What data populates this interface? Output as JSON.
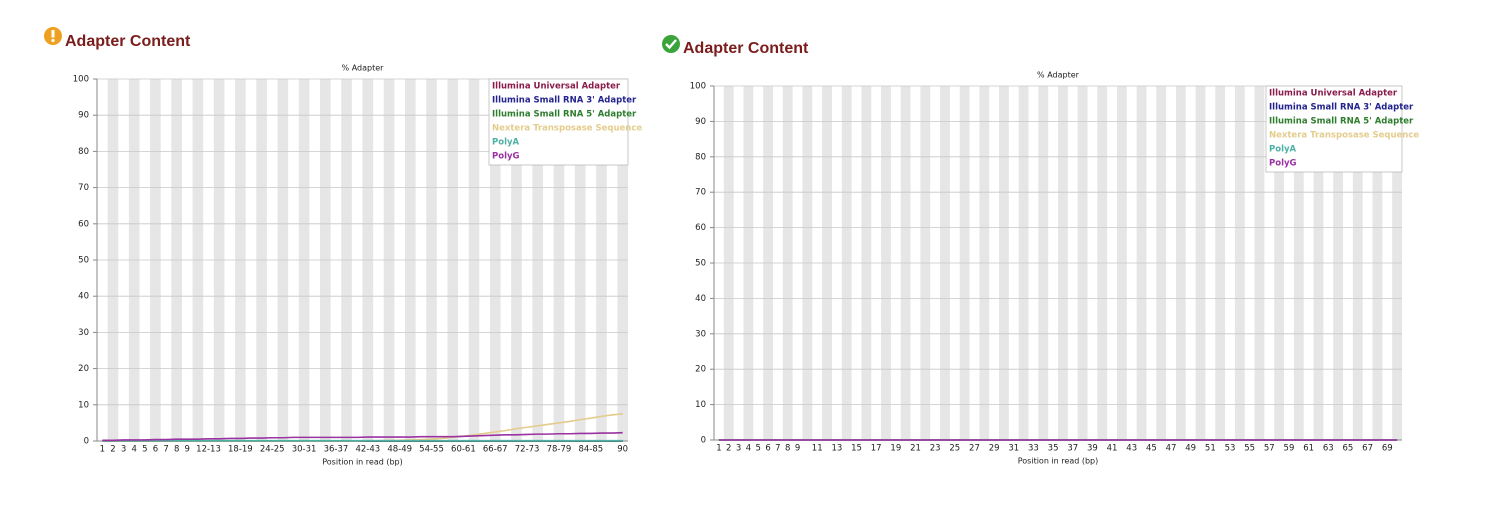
{
  "headings": [
    "Adapter Content",
    "Adapter Content"
  ],
  "chart_data": [
    {
      "type": "line",
      "title": "% Adapter",
      "x_label": "Position in read (bp)",
      "categories": [
        "1",
        "2",
        "3",
        "4",
        "5",
        "6",
        "7",
        "8",
        "9",
        null,
        "12-13",
        null,
        null,
        "18-19",
        null,
        null,
        "24-25",
        null,
        null,
        "30-31",
        null,
        null,
        "36-37",
        null,
        null,
        "42-43",
        null,
        null,
        "48-49",
        null,
        null,
        "54-55",
        null,
        null,
        "60-61",
        null,
        null,
        "66-67",
        null,
        null,
        "72-73",
        null,
        null,
        "78-79",
        null,
        null,
        "84-85",
        null,
        null,
        "90"
      ],
      "ylim": [
        0,
        100
      ],
      "yticks": [
        0,
        10,
        20,
        30,
        40,
        50,
        60,
        70,
        80,
        90,
        100
      ],
      "grid": true,
      "legend": "top-right",
      "series": [
        {
          "name": "Illumina Universal Adapter",
          "color": "#8a1c4c",
          "values": [
            0,
            0,
            0,
            0,
            0,
            0,
            0,
            0,
            0,
            0,
            0,
            0,
            0,
            0,
            0,
            0,
            0,
            0,
            0,
            0,
            0,
            0,
            0,
            0,
            0,
            0,
            0,
            0,
            0,
            0,
            0,
            0,
            0,
            0,
            0,
            0,
            0,
            0,
            0,
            0,
            0,
            0,
            0,
            0,
            0,
            0,
            0,
            0,
            0,
            0
          ]
        },
        {
          "name": "Illumina Small RNA 3' Adapter",
          "color": "#23238e",
          "values": [
            0,
            0,
            0,
            0,
            0,
            0,
            0,
            0,
            0,
            0,
            0,
            0,
            0,
            0,
            0,
            0,
            0,
            0,
            0,
            0,
            0,
            0,
            0,
            0,
            0,
            0,
            0,
            0,
            0,
            0,
            0,
            0,
            0,
            0,
            0,
            0,
            0,
            0,
            0,
            0,
            0,
            0,
            0,
            0,
            0,
            0,
            0,
            0,
            0,
            0
          ]
        },
        {
          "name": "Illumina Small RNA 5' Adapter",
          "color": "#2e7d2e",
          "values": [
            0,
            0,
            0,
            0,
            0,
            0,
            0,
            0,
            0,
            0,
            0,
            0,
            0,
            0,
            0,
            0,
            0,
            0,
            0,
            0,
            0,
            0,
            0,
            0,
            0,
            0,
            0,
            0,
            0,
            0,
            0,
            0,
            0,
            0,
            0,
            0,
            0,
            0,
            0,
            0,
            0,
            0,
            0,
            0,
            0,
            0,
            0,
            0,
            0,
            0
          ]
        },
        {
          "name": "Nextera Transposase Sequence",
          "color": "#e3cc8c",
          "values": [
            0,
            0,
            0,
            0,
            0,
            0,
            0,
            0,
            0,
            0,
            0,
            0,
            0,
            0,
            0,
            0,
            0,
            0,
            0,
            0,
            0,
            0,
            0,
            0,
            0,
            0.1,
            0.1,
            0.2,
            0.2,
            0.3,
            0.4,
            0.5,
            0.7,
            1.0,
            1.3,
            1.7,
            2.1,
            2.5,
            2.9,
            3.4,
            3.8,
            4.2,
            4.6,
            5.0,
            5.4,
            5.9,
            6.3,
            6.8,
            7.2,
            7.5
          ]
        },
        {
          "name": "PolyA",
          "color": "#4fb0a5",
          "values": [
            0.1,
            0.1,
            0.1,
            0.1,
            0.1,
            0.1,
            0.1,
            0.1,
            0.1,
            0.1,
            0.1,
            0.1,
            0.1,
            0.1,
            0.1,
            0.1,
            0.1,
            0.1,
            0.1,
            0.1,
            0.1,
            0.1,
            0.1,
            0.1,
            0.1,
            0.1,
            0.1,
            0.1,
            0.1,
            0.1,
            0.1,
            0.1,
            0.1,
            0.1,
            0.1,
            0.1,
            0.1,
            0.1,
            0.1,
            0.1,
            0.1,
            0.1,
            0.1,
            0.1,
            0.1,
            0.1,
            0.1,
            0.1,
            0.1,
            0.1
          ]
        },
        {
          "name": "PolyG",
          "color": "#9b32a2",
          "values": [
            0.2,
            0.2,
            0.3,
            0.3,
            0.3,
            0.4,
            0.4,
            0.5,
            0.5,
            0.5,
            0.6,
            0.6,
            0.7,
            0.7,
            0.8,
            0.8,
            0.9,
            0.9,
            1.0,
            1.0,
            1.0,
            1.0,
            1.0,
            1.0,
            1.0,
            1.1,
            1.1,
            1.1,
            1.1,
            1.1,
            1.2,
            1.2,
            1.2,
            1.2,
            1.3,
            1.4,
            1.5,
            1.6,
            1.7,
            1.7,
            1.8,
            1.9,
            1.9,
            2.0,
            2.0,
            2.1,
            2.1,
            2.2,
            2.2,
            2.3
          ]
        }
      ]
    },
    {
      "type": "line",
      "title": "% Adapter",
      "x_label": "Position in read (bp)",
      "categories": [
        "1",
        "2",
        "3",
        "4",
        "5",
        "6",
        "7",
        "8",
        "9",
        null,
        "11",
        null,
        "13",
        null,
        "15",
        null,
        "17",
        null,
        "19",
        null,
        "21",
        null,
        "23",
        null,
        "25",
        null,
        "27",
        null,
        "29",
        null,
        "31",
        null,
        "33",
        null,
        "35",
        null,
        "37",
        null,
        "39",
        null,
        "41",
        null,
        "43",
        null,
        "45",
        null,
        "47",
        null,
        "49",
        null,
        "51",
        null,
        "53",
        null,
        "55",
        null,
        "57",
        null,
        "59",
        null,
        "61",
        null,
        "63",
        null,
        "65",
        null,
        "67",
        null,
        "69",
        null
      ],
      "ylim": [
        0,
        100
      ],
      "yticks": [
        0,
        10,
        20,
        30,
        40,
        50,
        60,
        70,
        80,
        90,
        100
      ],
      "grid": true,
      "legend": "top-right",
      "series": [
        {
          "name": "Illumina Universal Adapter",
          "color": "#8a1c4c",
          "values": [
            0,
            0,
            0,
            0,
            0,
            0,
            0,
            0,
            0,
            0,
            0,
            0,
            0,
            0,
            0,
            0,
            0,
            0,
            0,
            0,
            0,
            0,
            0,
            0,
            0,
            0,
            0,
            0,
            0,
            0,
            0,
            0,
            0,
            0,
            0,
            0,
            0,
            0,
            0,
            0,
            0,
            0,
            0,
            0,
            0,
            0,
            0,
            0,
            0,
            0,
            0,
            0,
            0,
            0,
            0,
            0,
            0,
            0,
            0,
            0,
            0,
            0,
            0,
            0,
            0,
            0,
            0,
            0,
            0,
            0
          ]
        },
        {
          "name": "Illumina Small RNA 3' Adapter",
          "color": "#23238e",
          "values": [
            0,
            0,
            0,
            0,
            0,
            0,
            0,
            0,
            0,
            0,
            0,
            0,
            0,
            0,
            0,
            0,
            0,
            0,
            0,
            0,
            0,
            0,
            0,
            0,
            0,
            0,
            0,
            0,
            0,
            0,
            0,
            0,
            0,
            0,
            0,
            0,
            0,
            0,
            0,
            0,
            0,
            0,
            0,
            0,
            0,
            0,
            0,
            0,
            0,
            0,
            0,
            0,
            0,
            0,
            0,
            0,
            0,
            0,
            0,
            0,
            0,
            0,
            0,
            0,
            0,
            0,
            0,
            0,
            0,
            0
          ]
        },
        {
          "name": "Illumina Small RNA 5' Adapter",
          "color": "#2e7d2e",
          "values": [
            0,
            0,
            0,
            0,
            0,
            0,
            0,
            0,
            0,
            0,
            0,
            0,
            0,
            0,
            0,
            0,
            0,
            0,
            0,
            0,
            0,
            0,
            0,
            0,
            0,
            0,
            0,
            0,
            0,
            0,
            0,
            0,
            0,
            0,
            0,
            0,
            0,
            0,
            0,
            0,
            0,
            0,
            0,
            0,
            0,
            0,
            0,
            0,
            0,
            0,
            0,
            0,
            0,
            0,
            0,
            0,
            0,
            0,
            0,
            0,
            0,
            0,
            0,
            0,
            0,
            0,
            0,
            0,
            0,
            0
          ]
        },
        {
          "name": "Nextera Transposase Sequence",
          "color": "#e3cc8c",
          "values": [
            0,
            0,
            0,
            0,
            0,
            0,
            0,
            0,
            0,
            0,
            0,
            0,
            0,
            0,
            0,
            0,
            0,
            0,
            0,
            0,
            0,
            0,
            0,
            0,
            0,
            0,
            0,
            0,
            0,
            0,
            0,
            0,
            0,
            0,
            0,
            0,
            0,
            0,
            0,
            0,
            0,
            0,
            0,
            0,
            0,
            0,
            0,
            0,
            0,
            0,
            0,
            0,
            0,
            0,
            0,
            0,
            0,
            0,
            0,
            0,
            0,
            0,
            0,
            0,
            0,
            0,
            0,
            0,
            0,
            0
          ]
        },
        {
          "name": "PolyA",
          "color": "#4fb0a5",
          "values": [
            0,
            0,
            0,
            0,
            0,
            0,
            0,
            0,
            0,
            0,
            0,
            0,
            0,
            0,
            0,
            0,
            0,
            0,
            0,
            0,
            0,
            0,
            0,
            0,
            0,
            0,
            0,
            0,
            0,
            0,
            0,
            0,
            0,
            0,
            0,
            0,
            0,
            0,
            0,
            0,
            0,
            0,
            0,
            0,
            0,
            0,
            0,
            0,
            0,
            0,
            0,
            0,
            0,
            0,
            0,
            0,
            0,
            0,
            0,
            0,
            0,
            0,
            0,
            0,
            0,
            0,
            0,
            0,
            0,
            0
          ]
        },
        {
          "name": "PolyG",
          "color": "#9b32a2",
          "values": [
            0,
            0,
            0,
            0,
            0,
            0,
            0,
            0,
            0,
            0,
            0,
            0,
            0,
            0,
            0,
            0,
            0,
            0,
            0,
            0,
            0,
            0,
            0,
            0,
            0,
            0,
            0,
            0,
            0,
            0,
            0,
            0,
            0,
            0,
            0,
            0,
            0,
            0,
            0,
            0,
            0,
            0,
            0,
            0,
            0,
            0,
            0,
            0,
            0,
            0,
            0,
            0,
            0,
            0,
            0,
            0,
            0,
            0,
            0,
            0,
            0,
            0,
            0,
            0,
            0,
            0,
            0,
            0,
            0,
            0
          ]
        }
      ]
    }
  ]
}
